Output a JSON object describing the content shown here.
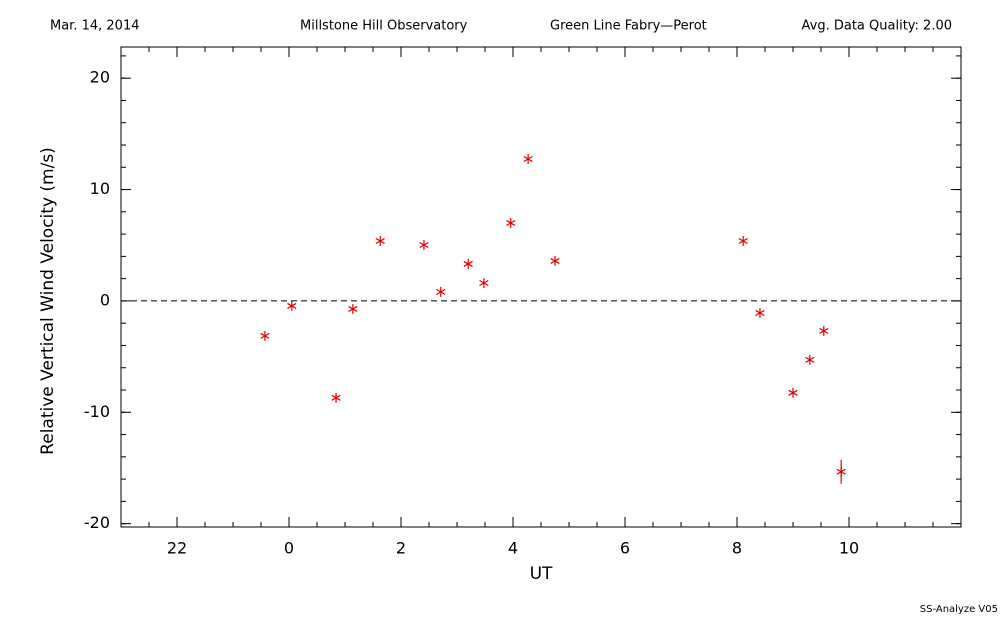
{
  "chart_data": {
    "type": "scatter",
    "header": [
      "Mar. 14, 2014",
      "Millstone Hill Observatory",
      "Green Line Fabry—Perot",
      "Avg. Data Quality: 2.00"
    ],
    "footer": "SS-Analyze V05",
    "x_label": "UT",
    "y_label": "Relative Vertical Wind Velocity (m/s)",
    "xlim": [
      -3,
      12
    ],
    "xticks": [
      {
        "value": -2,
        "label": "22"
      },
      0,
      2,
      4,
      6,
      8,
      10
    ],
    "ylim": [
      -20.3,
      22.8
    ],
    "yticks": [
      -20,
      -10,
      0,
      10,
      20
    ],
    "reference_line": 0,
    "color": "#e00000",
    "x": [
      -0.43,
      0.05,
      0.84,
      1.14,
      1.63,
      2.41,
      2.71,
      3.2,
      3.48,
      3.96,
      4.27,
      4.75,
      8.11,
      8.41,
      9.0,
      9.3,
      9.55,
      9.86
    ],
    "values": [
      -3.14,
      -0.45,
      -8.7,
      -0.72,
      5.38,
      5.02,
      0.81,
      3.32,
      1.61,
      7.0,
      12.74,
      3.59,
      5.38,
      -1.08,
      -8.25,
      -5.29,
      -2.69,
      -15.34
    ],
    "errors": [
      null,
      null,
      null,
      null,
      null,
      null,
      null,
      null,
      null,
      null,
      null,
      null,
      null,
      null,
      null,
      null,
      null,
      1.08
    ]
  }
}
